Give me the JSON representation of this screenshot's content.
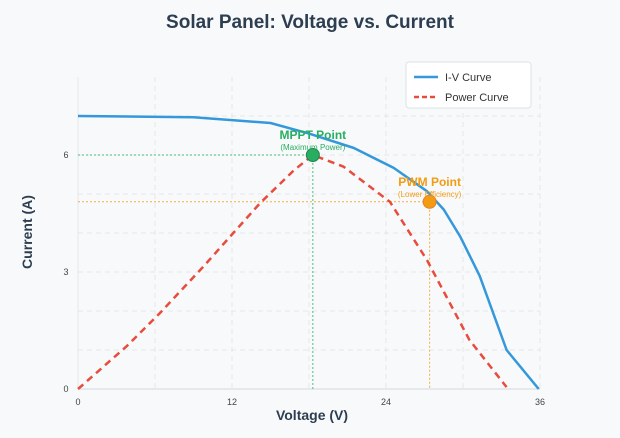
{
  "chart_data": {
    "type": "line",
    "title": "Solar Panel: Voltage vs. Current",
    "xlabel": "Voltage (V)",
    "ylabel": "Current (A)",
    "xlim": [
      0,
      36
    ],
    "ylim": [
      0,
      8
    ],
    "xticks": [
      0,
      12,
      24,
      36
    ],
    "yticks": [
      0,
      3,
      6
    ],
    "grid": true,
    "legend_position": "top-right",
    "series": [
      {
        "name": "I-V Curve",
        "style": "solid",
        "color": "#3498db",
        "x": [
          0,
          9,
          15,
          18,
          21.5,
          24.6,
          27.2,
          28.5,
          29.8,
          31.3,
          33.4,
          35.9
        ],
        "y": [
          7.0,
          6.97,
          6.82,
          6.55,
          6.18,
          5.67,
          5.07,
          4.6,
          3.9,
          2.9,
          1.0,
          0
        ]
      },
      {
        "name": "Power Curve",
        "style": "dashed",
        "color": "#e74c3c",
        "x": [
          0,
          3.8,
          6.4,
          9.8,
          12.1,
          14.2,
          16.8,
          18.3,
          20.7,
          24.3,
          27.2,
          30.5,
          33.4
        ],
        "y": [
          0,
          1.1,
          1.95,
          3.15,
          4.0,
          4.77,
          5.6,
          6.0,
          5.7,
          4.8,
          3.3,
          1.26,
          0.05
        ]
      }
    ],
    "annotations": [
      {
        "label": "MPPT Point",
        "sublabel": "(Maximum Power)",
        "x": 18.3,
        "y": 6.0,
        "color": "#27ae60"
      },
      {
        "label": "PWM Point",
        "sublabel": "(Lower Efficiency)",
        "x": 27.4,
        "y": 4.8,
        "color": "#f39c12"
      }
    ]
  }
}
